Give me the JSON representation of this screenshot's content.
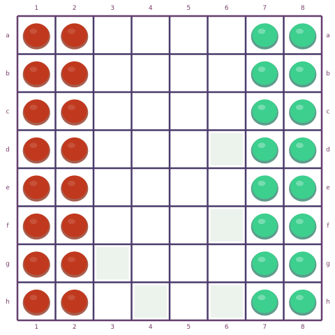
{
  "board": {
    "files_top": [
      "1",
      "2",
      "3",
      "4",
      "5",
      "6",
      "7",
      "8"
    ],
    "files_bottom": [
      "1",
      "2",
      "3",
      "4",
      "5",
      "6",
      "7",
      "8"
    ],
    "ranks_right": [
      "a",
      "b",
      "c",
      "d",
      "e",
      "f",
      "g",
      "h"
    ],
    "ranks_left": [
      "a",
      "b",
      "c",
      "d",
      "e",
      "f",
      "g",
      "h"
    ],
    "colors": {
      "grid": "#4a3a6a",
      "grid_accent": "#b0457a",
      "square_light": "#ffffff",
      "square_tint": "#eaf2ea",
      "red_piece": "#c0391e",
      "red_piece_dark": "#8a2a14",
      "green_piece": "#3ccf8e",
      "green_piece_dark": "#2a7a66"
    },
    "pieces": [
      {
        "row": 0,
        "col": 0,
        "color": "red"
      },
      {
        "row": 0,
        "col": 1,
        "color": "red"
      },
      {
        "row": 0,
        "col": 6,
        "color": "green"
      },
      {
        "row": 0,
        "col": 7,
        "color": "green"
      },
      {
        "row": 1,
        "col": 0,
        "color": "red"
      },
      {
        "row": 1,
        "col": 1,
        "color": "red"
      },
      {
        "row": 1,
        "col": 6,
        "color": "green"
      },
      {
        "row": 1,
        "col": 7,
        "color": "green"
      },
      {
        "row": 2,
        "col": 0,
        "color": "red"
      },
      {
        "row": 2,
        "col": 1,
        "color": "red"
      },
      {
        "row": 2,
        "col": 6,
        "color": "green"
      },
      {
        "row": 2,
        "col": 7,
        "color": "green"
      },
      {
        "row": 3,
        "col": 0,
        "color": "red"
      },
      {
        "row": 3,
        "col": 1,
        "color": "red"
      },
      {
        "row": 3,
        "col": 6,
        "color": "green"
      },
      {
        "row": 3,
        "col": 7,
        "color": "green"
      },
      {
        "row": 4,
        "col": 0,
        "color": "red"
      },
      {
        "row": 4,
        "col": 1,
        "color": "red"
      },
      {
        "row": 4,
        "col": 6,
        "color": "green"
      },
      {
        "row": 4,
        "col": 7,
        "color": "green"
      },
      {
        "row": 5,
        "col": 0,
        "color": "red"
      },
      {
        "row": 5,
        "col": 1,
        "color": "red"
      },
      {
        "row": 5,
        "col": 6,
        "color": "green"
      },
      {
        "row": 5,
        "col": 7,
        "color": "green"
      },
      {
        "row": 6,
        "col": 0,
        "color": "red"
      },
      {
        "row": 6,
        "col": 1,
        "color": "red"
      },
      {
        "row": 6,
        "col": 6,
        "color": "green"
      },
      {
        "row": 6,
        "col": 7,
        "color": "green"
      },
      {
        "row": 7,
        "col": 0,
        "color": "red"
      },
      {
        "row": 7,
        "col": 1,
        "color": "red"
      },
      {
        "row": 7,
        "col": 6,
        "color": "green"
      },
      {
        "row": 7,
        "col": 7,
        "color": "green"
      }
    ],
    "tinted_squares": [
      {
        "row": 3,
        "col": 5
      },
      {
        "row": 5,
        "col": 5
      },
      {
        "row": 7,
        "col": 3
      },
      {
        "row": 7,
        "col": 5
      },
      {
        "row": 6,
        "col": 2
      }
    ]
  }
}
